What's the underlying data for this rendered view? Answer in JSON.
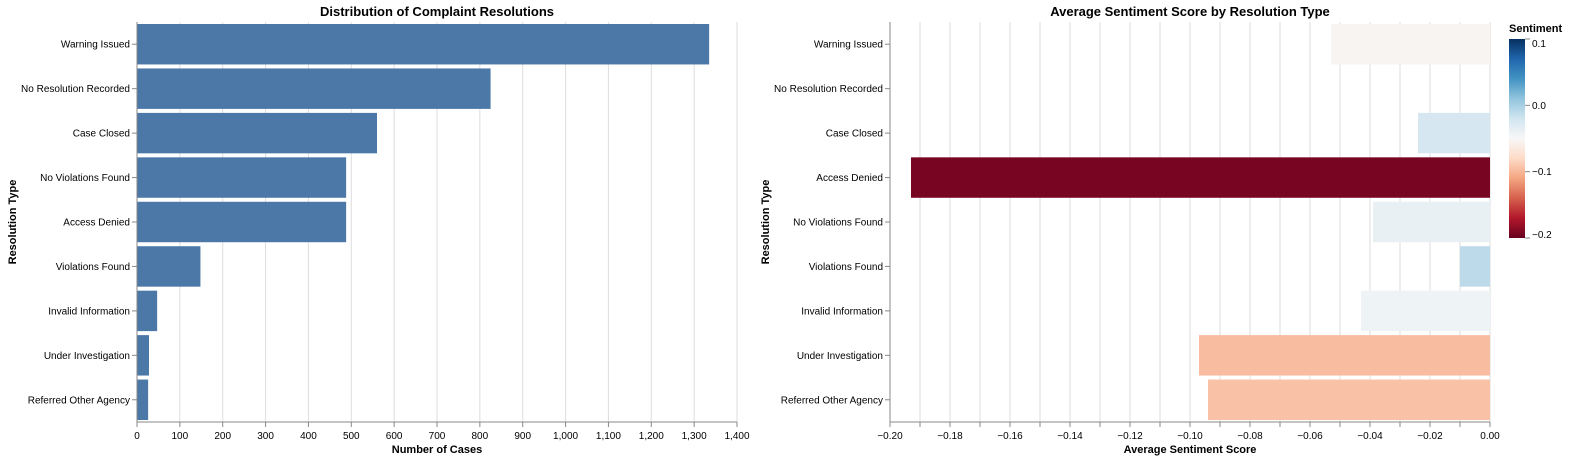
{
  "chart_data": [
    {
      "type": "bar",
      "title": "Distribution of Complaint Resolutions",
      "xlabel": "Number of Cases",
      "ylabel": "Resolution Type",
      "categories": [
        "Warning Issued",
        "No Resolution Recorded",
        "Case Closed",
        "No Violations Found",
        "Access Denied",
        "Violations Found",
        "Invalid Information",
        "Under Investigation",
        "Referred Other Agency"
      ],
      "values": [
        1335,
        825,
        560,
        488,
        488,
        148,
        47,
        28,
        26
      ],
      "xlim": [
        0,
        1400
      ],
      "xticks": [
        "0",
        "100",
        "200",
        "300",
        "400",
        "500",
        "600",
        "700",
        "800",
        "900",
        "1,000",
        "1,100",
        "1,200",
        "1,300",
        "1,400"
      ],
      "grid": true,
      "bar_color": "#4c78a8"
    },
    {
      "type": "bar",
      "title": "Average Sentiment Score by Resolution Type",
      "xlabel": "Average Sentiment Score",
      "ylabel": "Resolution Type",
      "categories": [
        "Warning Issued",
        "No Resolution Recorded",
        "Case Closed",
        "Access Denied",
        "No Violations Found",
        "Violations Found",
        "Invalid Information",
        "Under Investigation",
        "Referred Other Agency"
      ],
      "values": [
        -0.053,
        0.0,
        -0.024,
        -0.193,
        -0.039,
        -0.01,
        -0.043,
        -0.097,
        -0.094
      ],
      "xlim": [
        -0.2,
        0.0
      ],
      "xticks": [
        "−0.20",
        "−0.18",
        "−0.16",
        "−0.14",
        "−0.12",
        "−0.10",
        "−0.08",
        "−0.06",
        "−0.04",
        "−0.02",
        "0.00"
      ],
      "grid": true,
      "legend": {
        "title": "Sentiment",
        "position": "top-right",
        "ticks": [
          "0.1",
          "0.0",
          "−0.1",
          "−0.2"
        ],
        "color_scale": [
          "#053061",
          "#2166ac",
          "#4393c3",
          "#92c5de",
          "#d1e5f0",
          "#f7f7f7",
          "#fddbc7",
          "#f4a582",
          "#d6604d",
          "#b2182b",
          "#67001f"
        ]
      }
    }
  ]
}
